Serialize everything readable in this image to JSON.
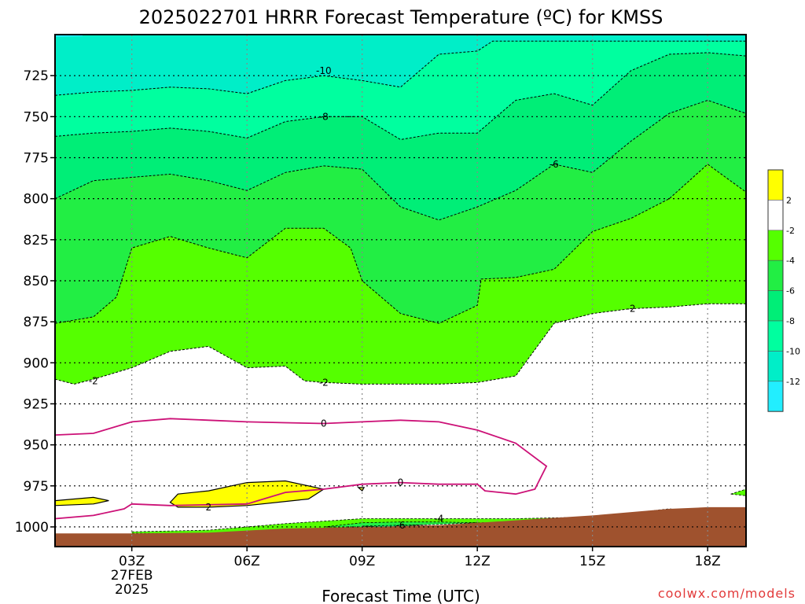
{
  "chart_data": {
    "type": "heatmap",
    "title": "2025022701 HRRR Forecast Temperature (ºC) for KMSS",
    "xlabel": "Forecast Time (UTC)",
    "ylabel": "",
    "y_scale": "pressure (inverted)",
    "ylim": [
      1012,
      700
    ],
    "xlim": [
      1,
      19
    ],
    "x_ticks": [
      {
        "x": 3,
        "label": "03Z",
        "sub": [
          "27FEB",
          "2025"
        ]
      },
      {
        "x": 6,
        "label": "06Z"
      },
      {
        "x": 9,
        "label": "09Z"
      },
      {
        "x": 12,
        "label": "12Z"
      },
      {
        "x": 15,
        "label": "15Z"
      },
      {
        "x": 18,
        "label": "18Z"
      }
    ],
    "y_ticks": [
      725,
      750,
      775,
      800,
      825,
      850,
      875,
      900,
      925,
      950,
      975,
      1000
    ],
    "grid": true,
    "legend": "right colorbar",
    "colorbar": {
      "levels": [
        2,
        -2,
        -4,
        -6,
        -8,
        -10,
        -12
      ],
      "bins": [
        {
          "range": "> 2",
          "color": "#ffff00"
        },
        {
          "range": "-2 to 2",
          "color": "#ffffff"
        },
        {
          "range": "-4 to -2",
          "color": "#55ff00"
        },
        {
          "range": "-6 to -4",
          "color": "#22ee44"
        },
        {
          "range": "-8 to -6",
          "color": "#00ee77"
        },
        {
          "range": "-10 to -8",
          "color": "#00ff9f"
        },
        {
          "range": "-12 to -10",
          "color": "#00eec8"
        },
        {
          "range": "< -12",
          "color": "#22eeff"
        }
      ]
    },
    "fill_layers": [
      {
        "color": "#55ff00",
        "boundary_level": -2,
        "points": [
          [
            1,
            910
          ],
          [
            1.5,
            913
          ],
          [
            2,
            910
          ],
          [
            3,
            903
          ],
          [
            4,
            893
          ],
          [
            5,
            890
          ],
          [
            6,
            903
          ],
          [
            7,
            902
          ],
          [
            7.5,
            911
          ],
          [
            8,
            912
          ],
          [
            9,
            913
          ],
          [
            10,
            913
          ],
          [
            11,
            913
          ],
          [
            12,
            912
          ],
          [
            13,
            908
          ],
          [
            14,
            876
          ],
          [
            15,
            870
          ],
          [
            16,
            867
          ],
          [
            17,
            866
          ],
          [
            18,
            864
          ],
          [
            19,
            864
          ]
        ]
      },
      {
        "color": "#22ee44",
        "boundary_level": -4,
        "points": [
          [
            1,
            876
          ],
          [
            2,
            872
          ],
          [
            2.6,
            860
          ],
          [
            3,
            830
          ],
          [
            4,
            823
          ],
          [
            5,
            830
          ],
          [
            6,
            836
          ],
          [
            7,
            818
          ],
          [
            8,
            818
          ],
          [
            8.7,
            830
          ],
          [
            9,
            850
          ],
          [
            10,
            870
          ],
          [
            11,
            876
          ],
          [
            12,
            865
          ],
          [
            12.1,
            849
          ],
          [
            13,
            848
          ],
          [
            14,
            843
          ],
          [
            15,
            820
          ],
          [
            16,
            812
          ],
          [
            17,
            800
          ],
          [
            18,
            779
          ],
          [
            19,
            796
          ]
        ]
      },
      {
        "color": "#00ee77",
        "boundary_level": -6,
        "points": [
          [
            1,
            800
          ],
          [
            2,
            789
          ],
          [
            3,
            787
          ],
          [
            4,
            785
          ],
          [
            5,
            789
          ],
          [
            6,
            795
          ],
          [
            7,
            784
          ],
          [
            8,
            780
          ],
          [
            9,
            782
          ],
          [
            10,
            805
          ],
          [
            11,
            813
          ],
          [
            12,
            805
          ],
          [
            13,
            795
          ],
          [
            14,
            779
          ],
          [
            15,
            784
          ],
          [
            16,
            765
          ],
          [
            17,
            748
          ],
          [
            18,
            740
          ],
          [
            19,
            748
          ]
        ]
      },
      {
        "color": "#00ff9f",
        "boundary_level": -8,
        "points": [
          [
            1,
            762
          ],
          [
            2,
            760
          ],
          [
            3,
            759
          ],
          [
            4,
            757
          ],
          [
            5,
            759
          ],
          [
            6,
            763
          ],
          [
            7,
            753
          ],
          [
            8,
            750
          ],
          [
            9,
            750
          ],
          [
            10,
            764
          ],
          [
            11,
            760
          ],
          [
            12,
            760
          ],
          [
            13,
            740
          ],
          [
            14,
            736
          ],
          [
            15,
            743
          ],
          [
            16,
            722
          ],
          [
            17,
            712
          ],
          [
            18,
            711
          ],
          [
            19,
            713
          ]
        ]
      },
      {
        "color": "#00eec8",
        "boundary_level": -10,
        "points": [
          [
            1,
            737
          ],
          [
            2,
            735
          ],
          [
            3,
            734
          ],
          [
            4,
            732
          ],
          [
            5,
            733
          ],
          [
            6,
            736
          ],
          [
            7,
            728
          ],
          [
            8,
            725
          ],
          [
            9,
            728
          ],
          [
            10,
            732
          ],
          [
            11,
            712
          ],
          [
            12,
            710
          ],
          [
            12.4,
            704
          ],
          [
            19,
            704
          ]
        ]
      }
    ],
    "warm_pockets": [
      {
        "color": "#ffff00",
        "points": [
          [
            1,
            984
          ],
          [
            2,
            982
          ],
          [
            2.4,
            984
          ],
          [
            2,
            986
          ],
          [
            1,
            987
          ]
        ]
      },
      {
        "color": "#ffff00",
        "points": [
          [
            4,
            985
          ],
          [
            4.2,
            980
          ],
          [
            5,
            978
          ],
          [
            6,
            973
          ],
          [
            7,
            972
          ],
          [
            8,
            977
          ],
          [
            7.6,
            983
          ],
          [
            6,
            987
          ],
          [
            5,
            988
          ],
          [
            4.2,
            988
          ]
        ]
      },
      {
        "color": "#ffff00",
        "points": [
          [
            8.9,
            976
          ],
          [
            9.05,
            976
          ],
          [
            9,
            978
          ]
        ]
      }
    ],
    "cold_slivers": [
      {
        "color": "#55ff00",
        "points": [
          [
            3,
            1003
          ],
          [
            5,
            1002
          ],
          [
            7,
            998
          ],
          [
            9,
            995
          ],
          [
            11,
            995
          ],
          [
            13,
            995
          ],
          [
            15,
            994
          ],
          [
            15.5,
            994
          ],
          [
            15.4,
            996
          ],
          [
            13,
            997
          ],
          [
            11,
            998
          ],
          [
            9,
            1001
          ],
          [
            7,
            1003
          ],
          [
            5,
            1004
          ],
          [
            3,
            1004
          ]
        ]
      },
      {
        "color": "#22ee44",
        "points": [
          [
            8,
            1000
          ],
          [
            9,
            997.5
          ],
          [
            10,
            997
          ],
          [
            11,
            997
          ],
          [
            12,
            997.5
          ],
          [
            11,
            998.5
          ],
          [
            10,
            999
          ],
          [
            9,
            1000
          ]
        ]
      },
      {
        "color": "#00ee77",
        "points": [
          [
            9,
            999.5
          ],
          [
            10,
            999
          ],
          [
            11,
            999.5
          ],
          [
            10,
            1000.5
          ]
        ]
      },
      {
        "color": "#55ff00",
        "points": [
          [
            16.2,
            991
          ],
          [
            17,
            989
          ],
          [
            17.4,
            990
          ],
          [
            17,
            992
          ],
          [
            16.2,
            993
          ]
        ]
      },
      {
        "color": "#55ff00",
        "points": [
          [
            18.6,
            980
          ],
          [
            19,
            977
          ],
          [
            19,
            981
          ]
        ]
      }
    ],
    "terrain": {
      "color": "#9f522e",
      "points": [
        [
          1,
          1004
        ],
        [
          3,
          1004
        ],
        [
          5,
          1003.5
        ],
        [
          7,
          1001
        ],
        [
          9,
          1000
        ],
        [
          11,
          999
        ],
        [
          13,
          996
        ],
        [
          15,
          993
        ],
        [
          17,
          989
        ],
        [
          18,
          988
        ],
        [
          19,
          988
        ]
      ]
    },
    "zero_line": {
      "color": "#cc1177",
      "level": 0,
      "points": [
        [
          1,
          944
        ],
        [
          2,
          943
        ],
        [
          3,
          936
        ],
        [
          4,
          934
        ],
        [
          5,
          935
        ],
        [
          6,
          936
        ],
        [
          7,
          936.5
        ],
        [
          8,
          937
        ],
        [
          9,
          936
        ],
        [
          10,
          935
        ],
        [
          11,
          936
        ],
        [
          12,
          941
        ],
        [
          13,
          949
        ],
        [
          13.8,
          963
        ],
        [
          13.5,
          977
        ],
        [
          13,
          980
        ],
        [
          12.2,
          978
        ],
        [
          12,
          974
        ],
        [
          11,
          974
        ],
        [
          10,
          973
        ],
        [
          9,
          974
        ],
        [
          8,
          977
        ],
        [
          7,
          979
        ],
        [
          6,
          986
        ],
        [
          5,
          986.5
        ],
        [
          4,
          987
        ],
        [
          3,
          986
        ],
        [
          2.8,
          989
        ],
        [
          2,
          993
        ],
        [
          1,
          995
        ]
      ]
    },
    "contour_labels": [
      {
        "x": 8,
        "y": 722,
        "text": "-10"
      },
      {
        "x": 8,
        "y": 750,
        "text": "-8"
      },
      {
        "x": 14,
        "y": 779,
        "text": "-6"
      },
      {
        "x": 16,
        "y": 867,
        "text": "-2"
      },
      {
        "x": 2,
        "y": 911,
        "text": "-2"
      },
      {
        "x": 8,
        "y": 912,
        "text": "-2"
      },
      {
        "x": 8,
        "y": 937,
        "text": "0"
      },
      {
        "x": 10,
        "y": 973,
        "text": "0"
      },
      {
        "x": 5,
        "y": 988,
        "text": "2"
      },
      {
        "x": 11,
        "y": 995,
        "text": "-4"
      },
      {
        "x": 10,
        "y": 999,
        "text": "-6"
      }
    ]
  },
  "credit": "coolwx.com/models"
}
